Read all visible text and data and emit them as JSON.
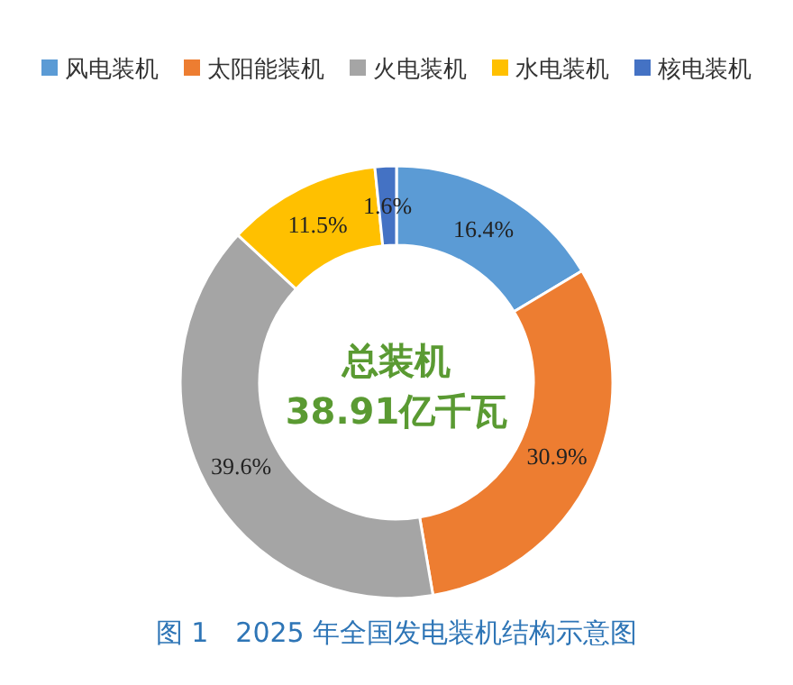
{
  "chart_data": {
    "type": "donut",
    "title": "图 1　2025 年全国发电装机结构示意图",
    "categories": [
      "风电装机",
      "太阳能装机",
      "火电装机",
      "水电装机",
      "核电装机"
    ],
    "values": [
      16.4,
      30.9,
      39.6,
      11.5,
      1.6
    ],
    "colors": [
      "#5b9bd5",
      "#ed7d31",
      "#a5a5a5",
      "#ffc000",
      "#4472c4"
    ],
    "value_labels": [
      "16.4%",
      "30.9%",
      "39.6%",
      "11.5%",
      "1.6%"
    ],
    "annotations": [
      "总装机",
      "38.91亿千瓦"
    ],
    "legend": "top"
  }
}
